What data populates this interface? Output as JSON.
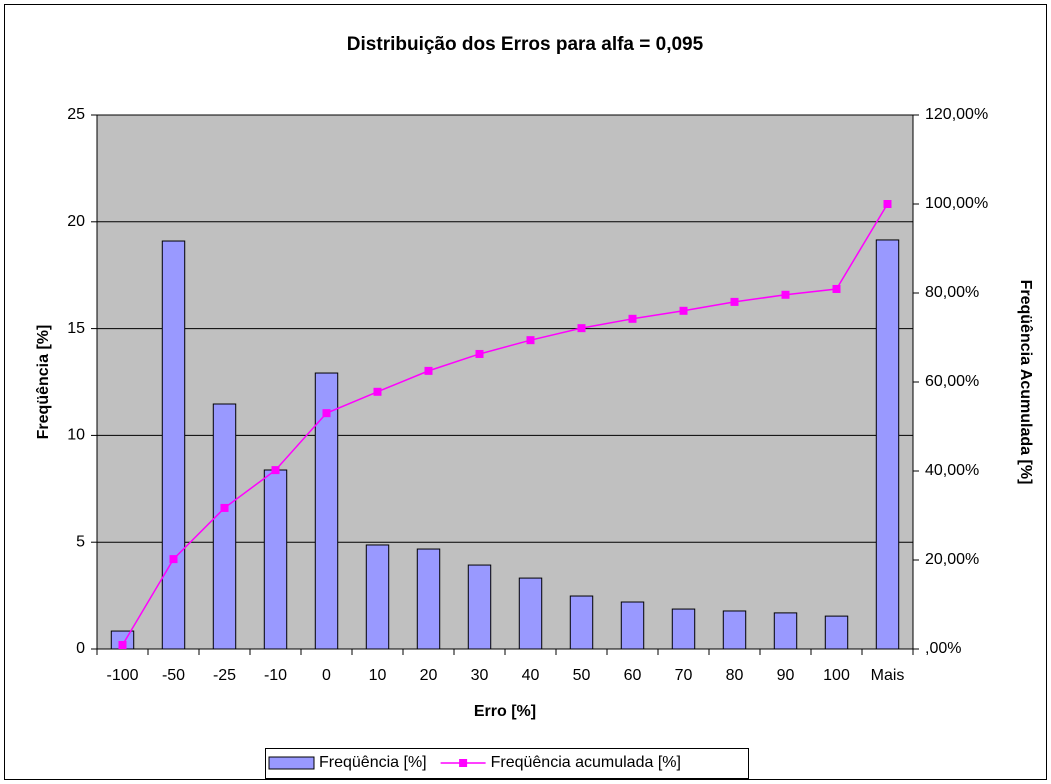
{
  "chart_data": {
    "type": "bar",
    "title": "Distribuição dos Erros para alfa = 0,095",
    "x_label": "Erro [%]",
    "y_label": "Freqüência [%]",
    "y2_label": "Freqüência Acumulada [%]",
    "categories": [
      "-100",
      "-50",
      "-25",
      "-10",
      "0",
      "10",
      "20",
      "30",
      "40",
      "50",
      "60",
      "70",
      "80",
      "90",
      "100",
      "Mais"
    ],
    "series": [
      {
        "name": "Freqüência [%]",
        "type": "bar",
        "color": "#9999ff",
        "values": [
          0.84,
          19.1,
          11.47,
          8.38,
          12.92,
          4.87,
          4.68,
          3.93,
          3.32,
          2.48,
          2.2,
          1.87,
          1.78,
          1.69,
          1.54,
          19.15
        ]
      },
      {
        "name": "Freqüência acumulada [%]",
        "type": "line",
        "axis": "y2",
        "color": "#ff00ff",
        "values": [
          0.9,
          20.2,
          31.7,
          40.2,
          53,
          57.8,
          62.5,
          66.3,
          69.4,
          72.1,
          74.2,
          76,
          78,
          79.6,
          80.9,
          100
        ]
      }
    ],
    "ylim": [
      0,
      25
    ],
    "yticks": [
      0,
      5,
      10,
      15,
      20,
      25
    ],
    "y2lim": [
      0,
      120
    ],
    "y2ticks": [
      {
        "value": 0,
        "label": ",00%"
      },
      {
        "value": 20,
        "label": "20,00%"
      },
      {
        "value": 40,
        "label": "40,00%"
      },
      {
        "value": 60,
        "label": "60,00%"
      },
      {
        "value": 80,
        "label": "80,00%"
      },
      {
        "value": 100,
        "label": "100,00%"
      },
      {
        "value": 120,
        "label": "120,00%"
      }
    ],
    "grid": true,
    "plot_background": "#c0c0c0",
    "legend": "bottom"
  }
}
